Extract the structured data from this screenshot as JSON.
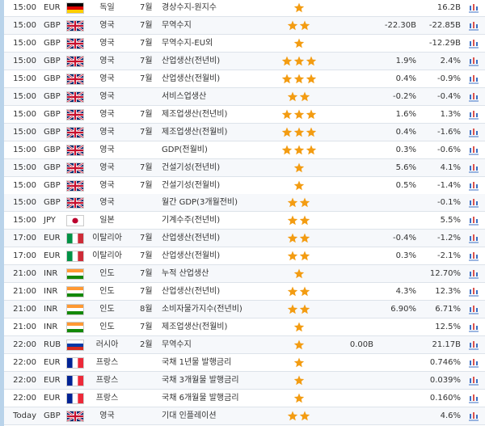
{
  "table": {
    "rows": [
      {
        "time": "15:00",
        "currency": "EUR",
        "flag": {
          "layout": "h",
          "colors": [
            "#000000",
            "#dd0000",
            "#ffce00"
          ]
        },
        "country": "독일",
        "period": "7월",
        "event": "경상수지-원지수",
        "stars": 1,
        "actual": "",
        "forecast": "",
        "previous": "16.2B"
      },
      {
        "time": "15:00",
        "currency": "GBP",
        "flag": {
          "layout": "union",
          "colors": [
            "#012169",
            "#ffffff",
            "#c8102e"
          ]
        },
        "country": "영국",
        "period": "7월",
        "event": "무역수지",
        "stars": 2,
        "actual": "",
        "forecast": "-22.30B",
        "previous": "-22.85B"
      },
      {
        "time": "15:00",
        "currency": "GBP",
        "flag": {
          "layout": "union",
          "colors": [
            "#012169",
            "#ffffff",
            "#c8102e"
          ]
        },
        "country": "영국",
        "period": "7월",
        "event": "무역수지-EU외",
        "stars": 1,
        "actual": "",
        "forecast": "",
        "previous": "-12.29B"
      },
      {
        "time": "15:00",
        "currency": "GBP",
        "flag": {
          "layout": "union",
          "colors": [
            "#012169",
            "#ffffff",
            "#c8102e"
          ]
        },
        "country": "영국",
        "period": "7월",
        "event": "산업생산(전년비)",
        "stars": 3,
        "actual": "",
        "forecast": "1.9%",
        "previous": "2.4%"
      },
      {
        "time": "15:00",
        "currency": "GBP",
        "flag": {
          "layout": "union",
          "colors": [
            "#012169",
            "#ffffff",
            "#c8102e"
          ]
        },
        "country": "영국",
        "period": "7월",
        "event": "산업생산(전월비)",
        "stars": 3,
        "actual": "",
        "forecast": "0.4%",
        "previous": "-0.9%"
      },
      {
        "time": "15:00",
        "currency": "GBP",
        "flag": {
          "layout": "union",
          "colors": [
            "#012169",
            "#ffffff",
            "#c8102e"
          ]
        },
        "country": "영국",
        "period": "",
        "event": "서비스업생산",
        "stars": 2,
        "actual": "",
        "forecast": "-0.2%",
        "previous": "-0.4%"
      },
      {
        "time": "15:00",
        "currency": "GBP",
        "flag": {
          "layout": "union",
          "colors": [
            "#012169",
            "#ffffff",
            "#c8102e"
          ]
        },
        "country": "영국",
        "period": "7월",
        "event": "제조업생산(전년비)",
        "stars": 3,
        "actual": "",
        "forecast": "1.6%",
        "previous": "1.3%"
      },
      {
        "time": "15:00",
        "currency": "GBP",
        "flag": {
          "layout": "union",
          "colors": [
            "#012169",
            "#ffffff",
            "#c8102e"
          ]
        },
        "country": "영국",
        "period": "7월",
        "event": "제조업생산(전월비)",
        "stars": 3,
        "actual": "",
        "forecast": "0.4%",
        "previous": "-1.6%"
      },
      {
        "time": "15:00",
        "currency": "GBP",
        "flag": {
          "layout": "union",
          "colors": [
            "#012169",
            "#ffffff",
            "#c8102e"
          ]
        },
        "country": "영국",
        "period": "",
        "event": "GDP(전월비)",
        "stars": 3,
        "actual": "",
        "forecast": "0.3%",
        "previous": "-0.6%"
      },
      {
        "time": "15:00",
        "currency": "GBP",
        "flag": {
          "layout": "union",
          "colors": [
            "#012169",
            "#ffffff",
            "#c8102e"
          ]
        },
        "country": "영국",
        "period": "7월",
        "event": "건설기성(전년비)",
        "stars": 1,
        "actual": "",
        "forecast": "5.6%",
        "previous": "4.1%"
      },
      {
        "time": "15:00",
        "currency": "GBP",
        "flag": {
          "layout": "union",
          "colors": [
            "#012169",
            "#ffffff",
            "#c8102e"
          ]
        },
        "country": "영국",
        "period": "7월",
        "event": "건설기성(전월비)",
        "stars": 1,
        "actual": "",
        "forecast": "0.5%",
        "previous": "-1.4%"
      },
      {
        "time": "15:00",
        "currency": "GBP",
        "flag": {
          "layout": "union",
          "colors": [
            "#012169",
            "#ffffff",
            "#c8102e"
          ]
        },
        "country": "영국",
        "period": "",
        "event": "월간 GDP(3개월전비)",
        "stars": 2,
        "actual": "",
        "forecast": "",
        "previous": "-0.1%"
      },
      {
        "time": "15:00",
        "currency": "JPY",
        "flag": {
          "layout": "disc",
          "colors": [
            "#ffffff",
            "#bc002d"
          ]
        },
        "country": "일본",
        "period": "",
        "event": "기계수주(전년비)",
        "stars": 2,
        "actual": "",
        "forecast": "",
        "previous": "5.5%"
      },
      {
        "time": "17:00",
        "currency": "EUR",
        "flag": {
          "layout": "v",
          "colors": [
            "#009246",
            "#ffffff",
            "#ce2b37"
          ]
        },
        "country": "이탈리아",
        "period": "7월",
        "event": "산업생산(전년비)",
        "stars": 2,
        "actual": "",
        "forecast": "-0.4%",
        "previous": "-1.2%"
      },
      {
        "time": "17:00",
        "currency": "EUR",
        "flag": {
          "layout": "v",
          "colors": [
            "#009246",
            "#ffffff",
            "#ce2b37"
          ]
        },
        "country": "이탈리아",
        "period": "7월",
        "event": "산업생산(전월비)",
        "stars": 2,
        "actual": "",
        "forecast": "0.3%",
        "previous": "-2.1%"
      },
      {
        "time": "21:00",
        "currency": "INR",
        "flag": {
          "layout": "h",
          "colors": [
            "#ff9933",
            "#ffffff",
            "#138808"
          ]
        },
        "country": "인도",
        "period": "7월",
        "event": "누적 산업생산",
        "stars": 1,
        "actual": "",
        "forecast": "",
        "previous": "12.70%"
      },
      {
        "time": "21:00",
        "currency": "INR",
        "flag": {
          "layout": "h",
          "colors": [
            "#ff9933",
            "#ffffff",
            "#138808"
          ]
        },
        "country": "인도",
        "period": "7월",
        "event": "산업생산(전년비)",
        "stars": 2,
        "actual": "",
        "forecast": "4.3%",
        "previous": "12.3%"
      },
      {
        "time": "21:00",
        "currency": "INR",
        "flag": {
          "layout": "h",
          "colors": [
            "#ff9933",
            "#ffffff",
            "#138808"
          ]
        },
        "country": "인도",
        "period": "8월",
        "event": "소비자물가지수(전년비)",
        "stars": 2,
        "actual": "",
        "forecast": "6.90%",
        "previous": "6.71%"
      },
      {
        "time": "21:00",
        "currency": "INR",
        "flag": {
          "layout": "h",
          "colors": [
            "#ff9933",
            "#ffffff",
            "#138808"
          ]
        },
        "country": "인도",
        "period": "7월",
        "event": "제조업생산(전월비)",
        "stars": 1,
        "actual": "",
        "forecast": "",
        "previous": "12.5%"
      },
      {
        "time": "22:00",
        "currency": "RUB",
        "flag": {
          "layout": "h",
          "colors": [
            "#ffffff",
            "#0039a6",
            "#d52b1e"
          ]
        },
        "country": "러시아",
        "period": "2월",
        "event": "무역수지",
        "stars": 1,
        "actual": "0.00B",
        "forecast": "",
        "previous": "21.17B"
      },
      {
        "time": "22:00",
        "currency": "EUR",
        "flag": {
          "layout": "v",
          "colors": [
            "#002395",
            "#ffffff",
            "#ed2939"
          ]
        },
        "country": "프랑스",
        "period": "",
        "event": "국채 1년물 발행금리",
        "stars": 1,
        "actual": "",
        "forecast": "",
        "previous": "0.746%"
      },
      {
        "time": "22:00",
        "currency": "EUR",
        "flag": {
          "layout": "v",
          "colors": [
            "#002395",
            "#ffffff",
            "#ed2939"
          ]
        },
        "country": "프랑스",
        "period": "",
        "event": "국채 3개월물 발행금리",
        "stars": 1,
        "actual": "",
        "forecast": "",
        "previous": "0.039%"
      },
      {
        "time": "22:00",
        "currency": "EUR",
        "flag": {
          "layout": "v",
          "colors": [
            "#002395",
            "#ffffff",
            "#ed2939"
          ]
        },
        "country": "프랑스",
        "period": "",
        "event": "국채 6개월물 발행금리",
        "stars": 1,
        "actual": "",
        "forecast": "",
        "previous": "0.160%"
      },
      {
        "time": "Today",
        "currency": "GBP",
        "flag": {
          "layout": "union",
          "colors": [
            "#012169",
            "#ffffff",
            "#c8102e"
          ]
        },
        "country": "영국",
        "period": "",
        "event": "기대 인플레이션",
        "stars": 2,
        "actual": "",
        "forecast": "",
        "previous": "4.6%"
      }
    ]
  }
}
